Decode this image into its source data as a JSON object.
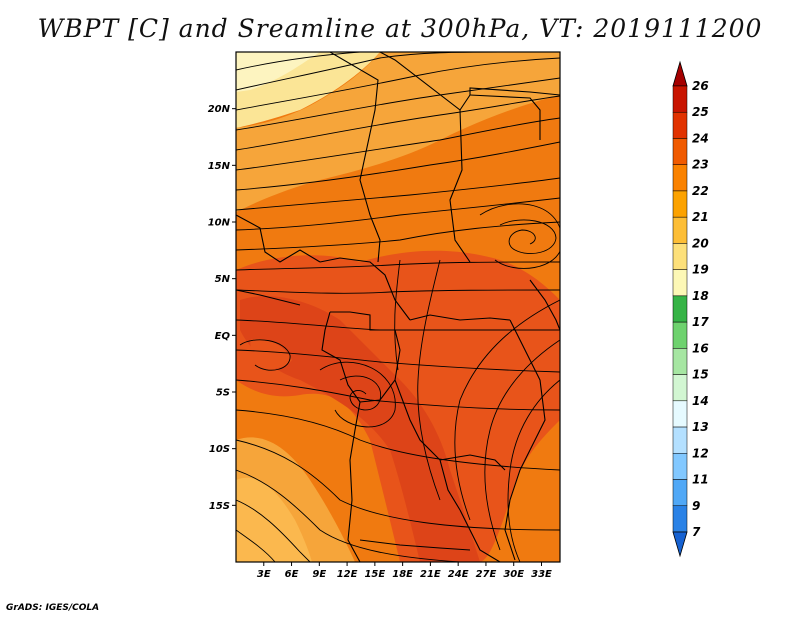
{
  "title": "WBPT [C] and Sreamline at 300hPa, VT: 2019111200",
  "footer": "GrADS: IGES/COLA",
  "map": {
    "lat_labels": [
      "20N",
      "15N",
      "10N",
      "5N",
      "EQ",
      "5S",
      "10S",
      "15S"
    ],
    "lon_labels": [
      "3E",
      "6E",
      "9E",
      "12E",
      "15E",
      "18E",
      "21E",
      "24E",
      "27E",
      "30E",
      "33E"
    ],
    "lat_values": [
      20,
      15,
      10,
      5,
      0,
      -5,
      -10,
      -15
    ],
    "lon_values": [
      3,
      6,
      9,
      12,
      15,
      18,
      21,
      24,
      27,
      30,
      33
    ],
    "lon_range": [
      0,
      35
    ],
    "lat_range": [
      -20,
      25
    ]
  },
  "colorbar": {
    "labels": [
      "26",
      "25",
      "24",
      "23",
      "22",
      "21",
      "20",
      "19",
      "18",
      "17",
      "16",
      "15",
      "14",
      "13",
      "12",
      "11",
      "9",
      "7"
    ],
    "colors": [
      "#a50000",
      "#c81400",
      "#e13200",
      "#f05a00",
      "#fa8200",
      "#fca200",
      "#fdbe36",
      "#fde07a",
      "#fdf8b6",
      "#36b446",
      "#6ed26e",
      "#a6e6a2",
      "#d2f6d2",
      "#e6faff",
      "#b4e0ff",
      "#82c8ff",
      "#50a8f6",
      "#2a82e6",
      "#1662d2"
    ]
  }
}
